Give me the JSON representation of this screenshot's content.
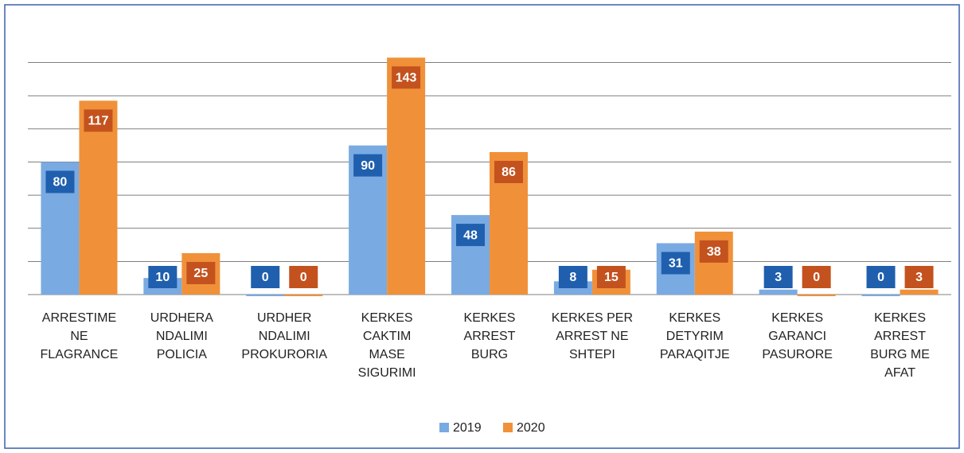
{
  "chart_data": {
    "type": "bar",
    "categories": [
      "ARRESTIME NE FLAGRANCE",
      "URDHERA NDALIMI POLICIA",
      "URDHER NDALIMI PROKURORIA",
      "KERKES CAKTIM MASE SIGURIMI",
      "KERKES ARREST BURG",
      "KERKES PER ARREST NE SHTEPI",
      "KERKES DETYRIM PARAQITJE",
      "KERKES GARANCI PASURORE",
      "KERKES ARREST BURG ME AFAT"
    ],
    "series": [
      {
        "name": "2019",
        "color": "#7aaae2",
        "values": [
          80,
          10,
          0,
          90,
          48,
          8,
          31,
          3,
          0
        ]
      },
      {
        "name": "2020",
        "color": "#f0913a",
        "values": [
          117,
          25,
          0,
          143,
          86,
          15,
          38,
          0,
          3
        ]
      }
    ],
    "ylim": [
      0,
      160
    ],
    "yticks": [
      0,
      20,
      40,
      60,
      80,
      100,
      120,
      140
    ],
    "grid": true,
    "legend": "bottom"
  }
}
